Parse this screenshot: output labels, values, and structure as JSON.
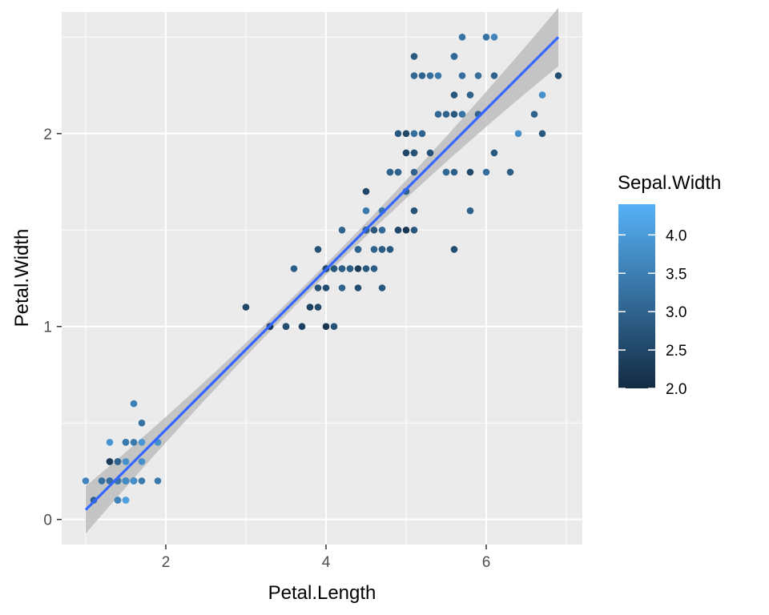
{
  "chart_data": {
    "type": "scatter",
    "title": "",
    "xlabel": "Petal.Length",
    "ylabel": "Petal.Width",
    "xlim": [
      0.7,
      7.2
    ],
    "ylim": [
      -0.13,
      2.63
    ],
    "x_ticks": [
      2,
      4,
      6
    ],
    "y_ticks": [
      0,
      1,
      2
    ],
    "grid": true,
    "legend": {
      "title": "Sepal.Width",
      "placement": "right",
      "ticks": [
        "4.0",
        "3.5",
        "3.0",
        "2.5",
        "2.0"
      ],
      "tick_values": [
        4.0,
        3.5,
        3.0,
        2.5,
        2.0
      ],
      "range": [
        2.0,
        4.4
      ],
      "color_low": "#132B43",
      "color_high": "#56B1F7"
    },
    "colors": {
      "panel_background": "#EBEBEB",
      "grid": "#FFFFFF",
      "trend_line": "#3366FF",
      "confidence_band": "#BDBDBD"
    },
    "trend": {
      "type": "linear",
      "start": [
        1.0,
        0.05
      ],
      "end": [
        6.9,
        2.5
      ],
      "confidence_band": true
    },
    "points": [
      [
        1.4,
        0.2,
        3.5
      ],
      [
        1.4,
        0.2,
        3.0
      ],
      [
        1.3,
        0.2,
        3.2
      ],
      [
        1.5,
        0.2,
        3.1
      ],
      [
        1.4,
        0.2,
        3.6
      ],
      [
        1.7,
        0.4,
        3.9
      ],
      [
        1.4,
        0.3,
        3.4
      ],
      [
        1.5,
        0.2,
        3.4
      ],
      [
        1.4,
        0.2,
        2.9
      ],
      [
        1.5,
        0.1,
        3.1
      ],
      [
        1.5,
        0.2,
        3.7
      ],
      [
        1.6,
        0.2,
        3.4
      ],
      [
        1.4,
        0.1,
        3.0
      ],
      [
        1.1,
        0.1,
        3.0
      ],
      [
        1.2,
        0.2,
        4.0
      ],
      [
        1.5,
        0.4,
        4.4
      ],
      [
        1.3,
        0.4,
        3.9
      ],
      [
        1.4,
        0.3,
        3.5
      ],
      [
        1.7,
        0.3,
        3.8
      ],
      [
        1.5,
        0.3,
        3.8
      ],
      [
        1.7,
        0.2,
        3.4
      ],
      [
        1.5,
        0.4,
        3.7
      ],
      [
        1.0,
        0.2,
        3.6
      ],
      [
        1.7,
        0.5,
        3.3
      ],
      [
        1.9,
        0.2,
        3.4
      ],
      [
        1.6,
        0.2,
        3.0
      ],
      [
        1.6,
        0.4,
        3.4
      ],
      [
        1.5,
        0.2,
        3.5
      ],
      [
        1.4,
        0.2,
        3.4
      ],
      [
        1.6,
        0.2,
        3.2
      ],
      [
        1.6,
        0.2,
        3.1
      ],
      [
        1.5,
        0.4,
        3.4
      ],
      [
        1.5,
        0.1,
        4.1
      ],
      [
        1.4,
        0.2,
        4.2
      ],
      [
        1.5,
        0.2,
        3.1
      ],
      [
        1.2,
        0.2,
        3.2
      ],
      [
        1.3,
        0.2,
        3.5
      ],
      [
        1.4,
        0.1,
        3.6
      ],
      [
        1.3,
        0.2,
        3.0
      ],
      [
        1.5,
        0.2,
        3.4
      ],
      [
        1.3,
        0.3,
        3.5
      ],
      [
        1.3,
        0.3,
        2.3
      ],
      [
        1.3,
        0.2,
        3.2
      ],
      [
        1.6,
        0.6,
        3.5
      ],
      [
        1.9,
        0.4,
        3.8
      ],
      [
        1.4,
        0.3,
        3.0
      ],
      [
        1.6,
        0.2,
        3.8
      ],
      [
        1.4,
        0.2,
        3.2
      ],
      [
        1.5,
        0.2,
        3.7
      ],
      [
        1.4,
        0.2,
        3.3
      ],
      [
        4.7,
        1.4,
        3.2
      ],
      [
        4.5,
        1.5,
        3.2
      ],
      [
        4.9,
        1.5,
        3.1
      ],
      [
        4.0,
        1.3,
        2.3
      ],
      [
        4.6,
        1.5,
        2.8
      ],
      [
        4.5,
        1.3,
        2.8
      ],
      [
        4.7,
        1.6,
        3.3
      ],
      [
        3.3,
        1.0,
        2.4
      ],
      [
        4.6,
        1.3,
        2.9
      ],
      [
        3.9,
        1.4,
        2.7
      ],
      [
        3.5,
        1.0,
        2.0
      ],
      [
        4.2,
        1.5,
        3.0
      ],
      [
        4.0,
        1.0,
        2.2
      ],
      [
        4.7,
        1.4,
        2.9
      ],
      [
        3.6,
        1.3,
        2.9
      ],
      [
        4.4,
        1.4,
        3.1
      ],
      [
        4.5,
        1.5,
        3.0
      ],
      [
        4.1,
        1.0,
        2.7
      ],
      [
        4.5,
        1.5,
        2.2
      ],
      [
        3.9,
        1.1,
        2.5
      ],
      [
        4.8,
        1.8,
        3.2
      ],
      [
        4.0,
        1.3,
        2.8
      ],
      [
        4.9,
        1.5,
        2.5
      ],
      [
        4.7,
        1.2,
        2.8
      ],
      [
        4.3,
        1.3,
        2.9
      ],
      [
        4.4,
        1.4,
        3.0
      ],
      [
        4.8,
        1.4,
        2.8
      ],
      [
        5.0,
        1.7,
        3.0
      ],
      [
        4.5,
        1.5,
        2.9
      ],
      [
        3.5,
        1.0,
        2.6
      ],
      [
        3.8,
        1.1,
        2.4
      ],
      [
        3.7,
        1.0,
        2.4
      ],
      [
        3.9,
        1.2,
        2.7
      ],
      [
        5.1,
        1.6,
        2.7
      ],
      [
        4.5,
        1.5,
        3.0
      ],
      [
        4.5,
        1.6,
        3.4
      ],
      [
        4.7,
        1.5,
        3.1
      ],
      [
        4.4,
        1.3,
        2.3
      ],
      [
        4.1,
        1.3,
        3.0
      ],
      [
        4.0,
        1.3,
        2.5
      ],
      [
        4.4,
        1.2,
        2.6
      ],
      [
        4.6,
        1.4,
        3.0
      ],
      [
        4.0,
        1.2,
        2.6
      ],
      [
        3.3,
        1.0,
        2.3
      ],
      [
        4.2,
        1.3,
        2.7
      ],
      [
        4.2,
        1.2,
        3.0
      ],
      [
        4.2,
        1.3,
        2.9
      ],
      [
        4.3,
        1.3,
        2.9
      ],
      [
        3.0,
        1.1,
        2.5
      ],
      [
        4.1,
        1.3,
        2.8
      ],
      [
        6.0,
        2.5,
        3.3
      ],
      [
        5.1,
        1.9,
        2.7
      ],
      [
        5.9,
        2.1,
        3.0
      ],
      [
        5.6,
        1.8,
        2.9
      ],
      [
        5.8,
        2.2,
        3.0
      ],
      [
        6.6,
        2.1,
        3.0
      ],
      [
        4.5,
        1.7,
        2.5
      ],
      [
        6.3,
        1.8,
        2.9
      ],
      [
        5.8,
        1.8,
        2.5
      ],
      [
        6.1,
        2.5,
        3.6
      ],
      [
        5.1,
        2.0,
        3.2
      ],
      [
        5.3,
        1.9,
        2.7
      ],
      [
        5.5,
        2.1,
        3.0
      ],
      [
        5.0,
        2.0,
        2.5
      ],
      [
        5.1,
        2.4,
        2.8
      ],
      [
        5.3,
        2.3,
        3.2
      ],
      [
        5.5,
        1.8,
        3.0
      ],
      [
        6.7,
        2.2,
        3.8
      ],
      [
        6.9,
        2.3,
        2.6
      ],
      [
        5.0,
        1.5,
        2.2
      ],
      [
        5.7,
        2.3,
        3.2
      ],
      [
        4.9,
        2.0,
        2.8
      ],
      [
        6.7,
        2.0,
        2.8
      ],
      [
        4.9,
        1.8,
        2.7
      ],
      [
        5.7,
        2.1,
        3.3
      ],
      [
        6.0,
        1.8,
        3.2
      ],
      [
        4.8,
        1.8,
        2.8
      ],
      [
        4.9,
        1.8,
        3.0
      ],
      [
        5.6,
        2.1,
        2.8
      ],
      [
        5.8,
        1.6,
        3.0
      ],
      [
        6.1,
        1.9,
        2.8
      ],
      [
        6.4,
        2.0,
        3.8
      ],
      [
        5.6,
        2.2,
        2.8
      ],
      [
        5.1,
        1.5,
        2.8
      ],
      [
        5.6,
        1.4,
        2.6
      ],
      [
        6.1,
        2.3,
        3.0
      ],
      [
        5.6,
        2.4,
        3.4
      ],
      [
        5.5,
        1.8,
        3.1
      ],
      [
        4.8,
        1.8,
        3.0
      ],
      [
        5.4,
        2.1,
        3.1
      ],
      [
        5.6,
        2.4,
        3.1
      ],
      [
        5.1,
        2.3,
        3.1
      ],
      [
        5.1,
        1.9,
        2.7
      ],
      [
        5.9,
        2.3,
        3.2
      ],
      [
        5.7,
        2.5,
        3.3
      ],
      [
        5.2,
        2.3,
        3.0
      ],
      [
        5.0,
        1.9,
        2.5
      ],
      [
        5.2,
        2.0,
        3.0
      ],
      [
        5.4,
        2.3,
        3.4
      ],
      [
        5.1,
        1.8,
        3.0
      ]
    ]
  }
}
